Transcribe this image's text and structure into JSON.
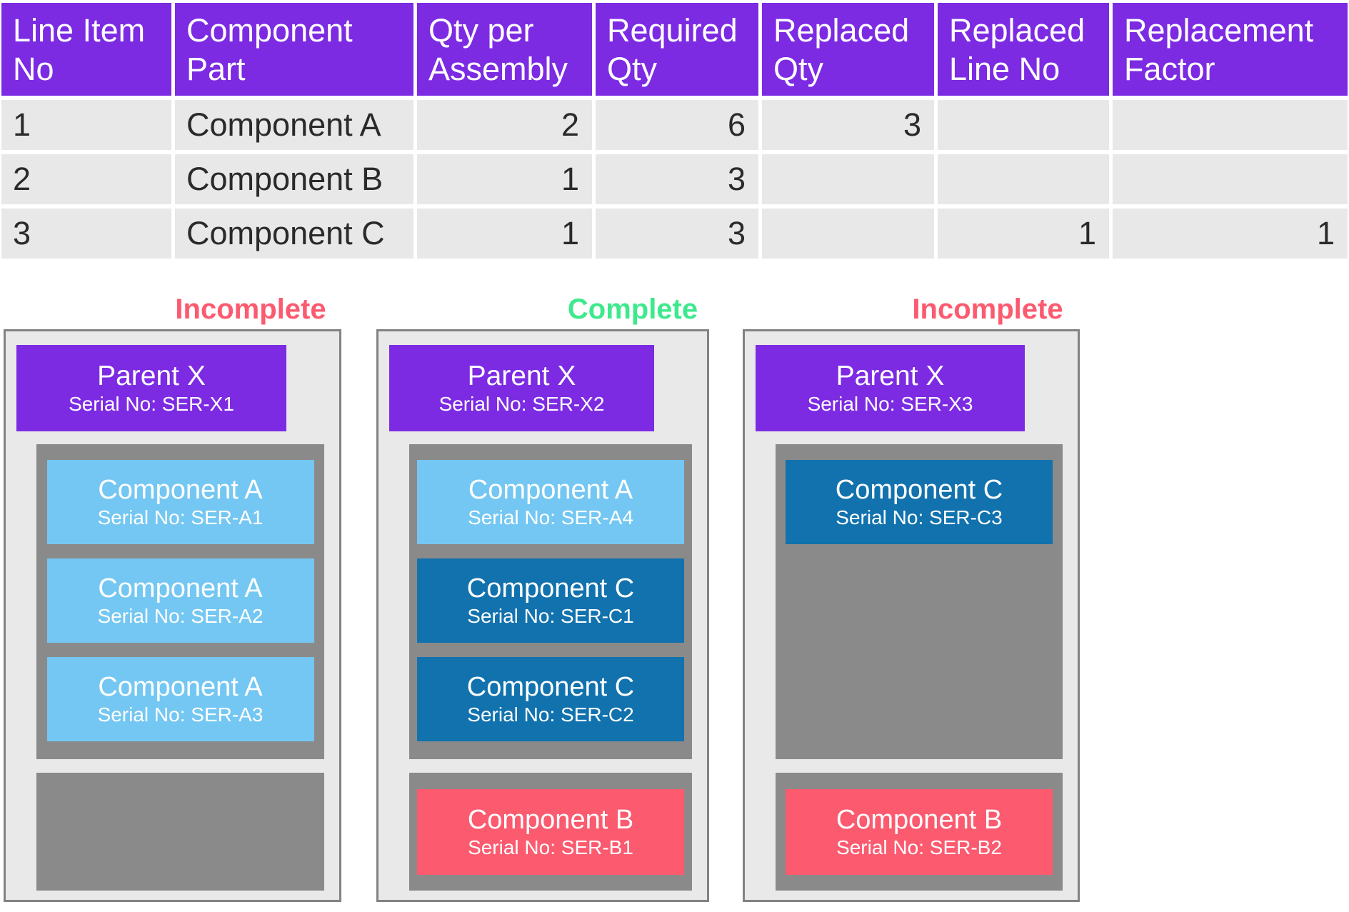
{
  "colors": {
    "purple": "#7C2BE3",
    "light_blue": "#74C7F2",
    "dark_blue": "#1172AE",
    "pink": "#FB5A6F",
    "status_green": "#3DE98C",
    "status_red": "#FB5A6F",
    "slot_gray": "#8A8A8A",
    "panel_bg": "#E9E9E9",
    "cell_bg": "#E8E8E8"
  },
  "table": {
    "header": [
      "Line Item No",
      "Component Part",
      "Qty per Assembly",
      "Required Qty",
      "Replaced Qty",
      "Replaced Line No",
      "Replacement Factor"
    ],
    "rows": [
      [
        "1",
        "Component A",
        "2",
        "6",
        "3",
        "",
        ""
      ],
      [
        "2",
        "Component B",
        "1",
        "3",
        "",
        "",
        ""
      ],
      [
        "3",
        "Component C",
        "1",
        "3",
        "",
        "1",
        "1"
      ]
    ]
  },
  "panels": [
    {
      "status": "Incomplete",
      "status_color": "#FB5A6F",
      "parent": {
        "name": "Parent X",
        "serial": "Serial No: SER-X1"
      },
      "main": [
        {
          "name": "Component A",
          "serial": "Serial No: SER-A1",
          "color": "#74C7F2"
        },
        {
          "name": "Component A",
          "serial": "Serial No: SER-A2",
          "color": "#74C7F2"
        },
        {
          "name": "Component A",
          "serial": "Serial No: SER-A3",
          "color": "#74C7F2"
        }
      ],
      "bottom": []
    },
    {
      "status": "Complete",
      "status_color": "#3DE98C",
      "parent": {
        "name": "Parent X",
        "serial": "Serial No: SER-X2"
      },
      "main": [
        {
          "name": "Component A",
          "serial": "Serial No: SER-A4",
          "color": "#74C7F2"
        },
        {
          "name": "Component C",
          "serial": "Serial No: SER-C1",
          "color": "#1172AE"
        },
        {
          "name": "Component C",
          "serial": "Serial No: SER-C2",
          "color": "#1172AE"
        }
      ],
      "bottom": [
        {
          "name": "Component B",
          "serial": "Serial No: SER-B1",
          "color": "#FB5A6F"
        }
      ]
    },
    {
      "status": "Incomplete",
      "status_color": "#FB5A6F",
      "parent": {
        "name": "Parent X",
        "serial": "Serial No: SER-X3"
      },
      "main": [
        {
          "name": "Component C",
          "serial": "Serial No: SER-C3",
          "color": "#1172AE"
        }
      ],
      "bottom": [
        {
          "name": "Component B",
          "serial": "Serial No: SER-B2",
          "color": "#FB5A6F"
        }
      ]
    }
  ]
}
